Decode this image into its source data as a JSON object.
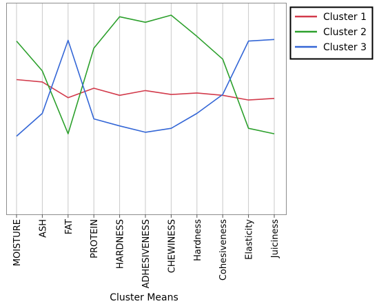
{
  "chart_data": {
    "type": "line",
    "title": "",
    "xlabel": "Cluster Means",
    "ylabel": "",
    "ylim": [
      0,
      100
    ],
    "grid": "vertical lines at each category",
    "legend_position": "right",
    "categories": [
      "MOISTURE",
      "ASH",
      "FAT",
      "PROTEIN",
      "HARDNESS",
      "ADHESIVENESS",
      "CHEWINESS",
      "Hardness",
      "Cohesiveness",
      "Elasticity",
      "Juiciness"
    ],
    "series": [
      {
        "name": "Cluster 1",
        "color": "#d23a4b",
        "values": [
          59,
          57.5,
          47.5,
          53.5,
          49,
          52,
          49.5,
          50.5,
          49,
          46,
          47
        ]
      },
      {
        "name": "Cluster 2",
        "color": "#2ca02c",
        "values": [
          83.5,
          64.5,
          24.5,
          79,
          99,
          95.5,
          100,
          86.5,
          72,
          28,
          24.5
        ]
      },
      {
        "name": "Cluster 3",
        "color": "#3366d6",
        "values": [
          23,
          37.5,
          84,
          34,
          29.5,
          25.5,
          28,
          37.5,
          49.5,
          83.5,
          84.5
        ]
      }
    ]
  }
}
